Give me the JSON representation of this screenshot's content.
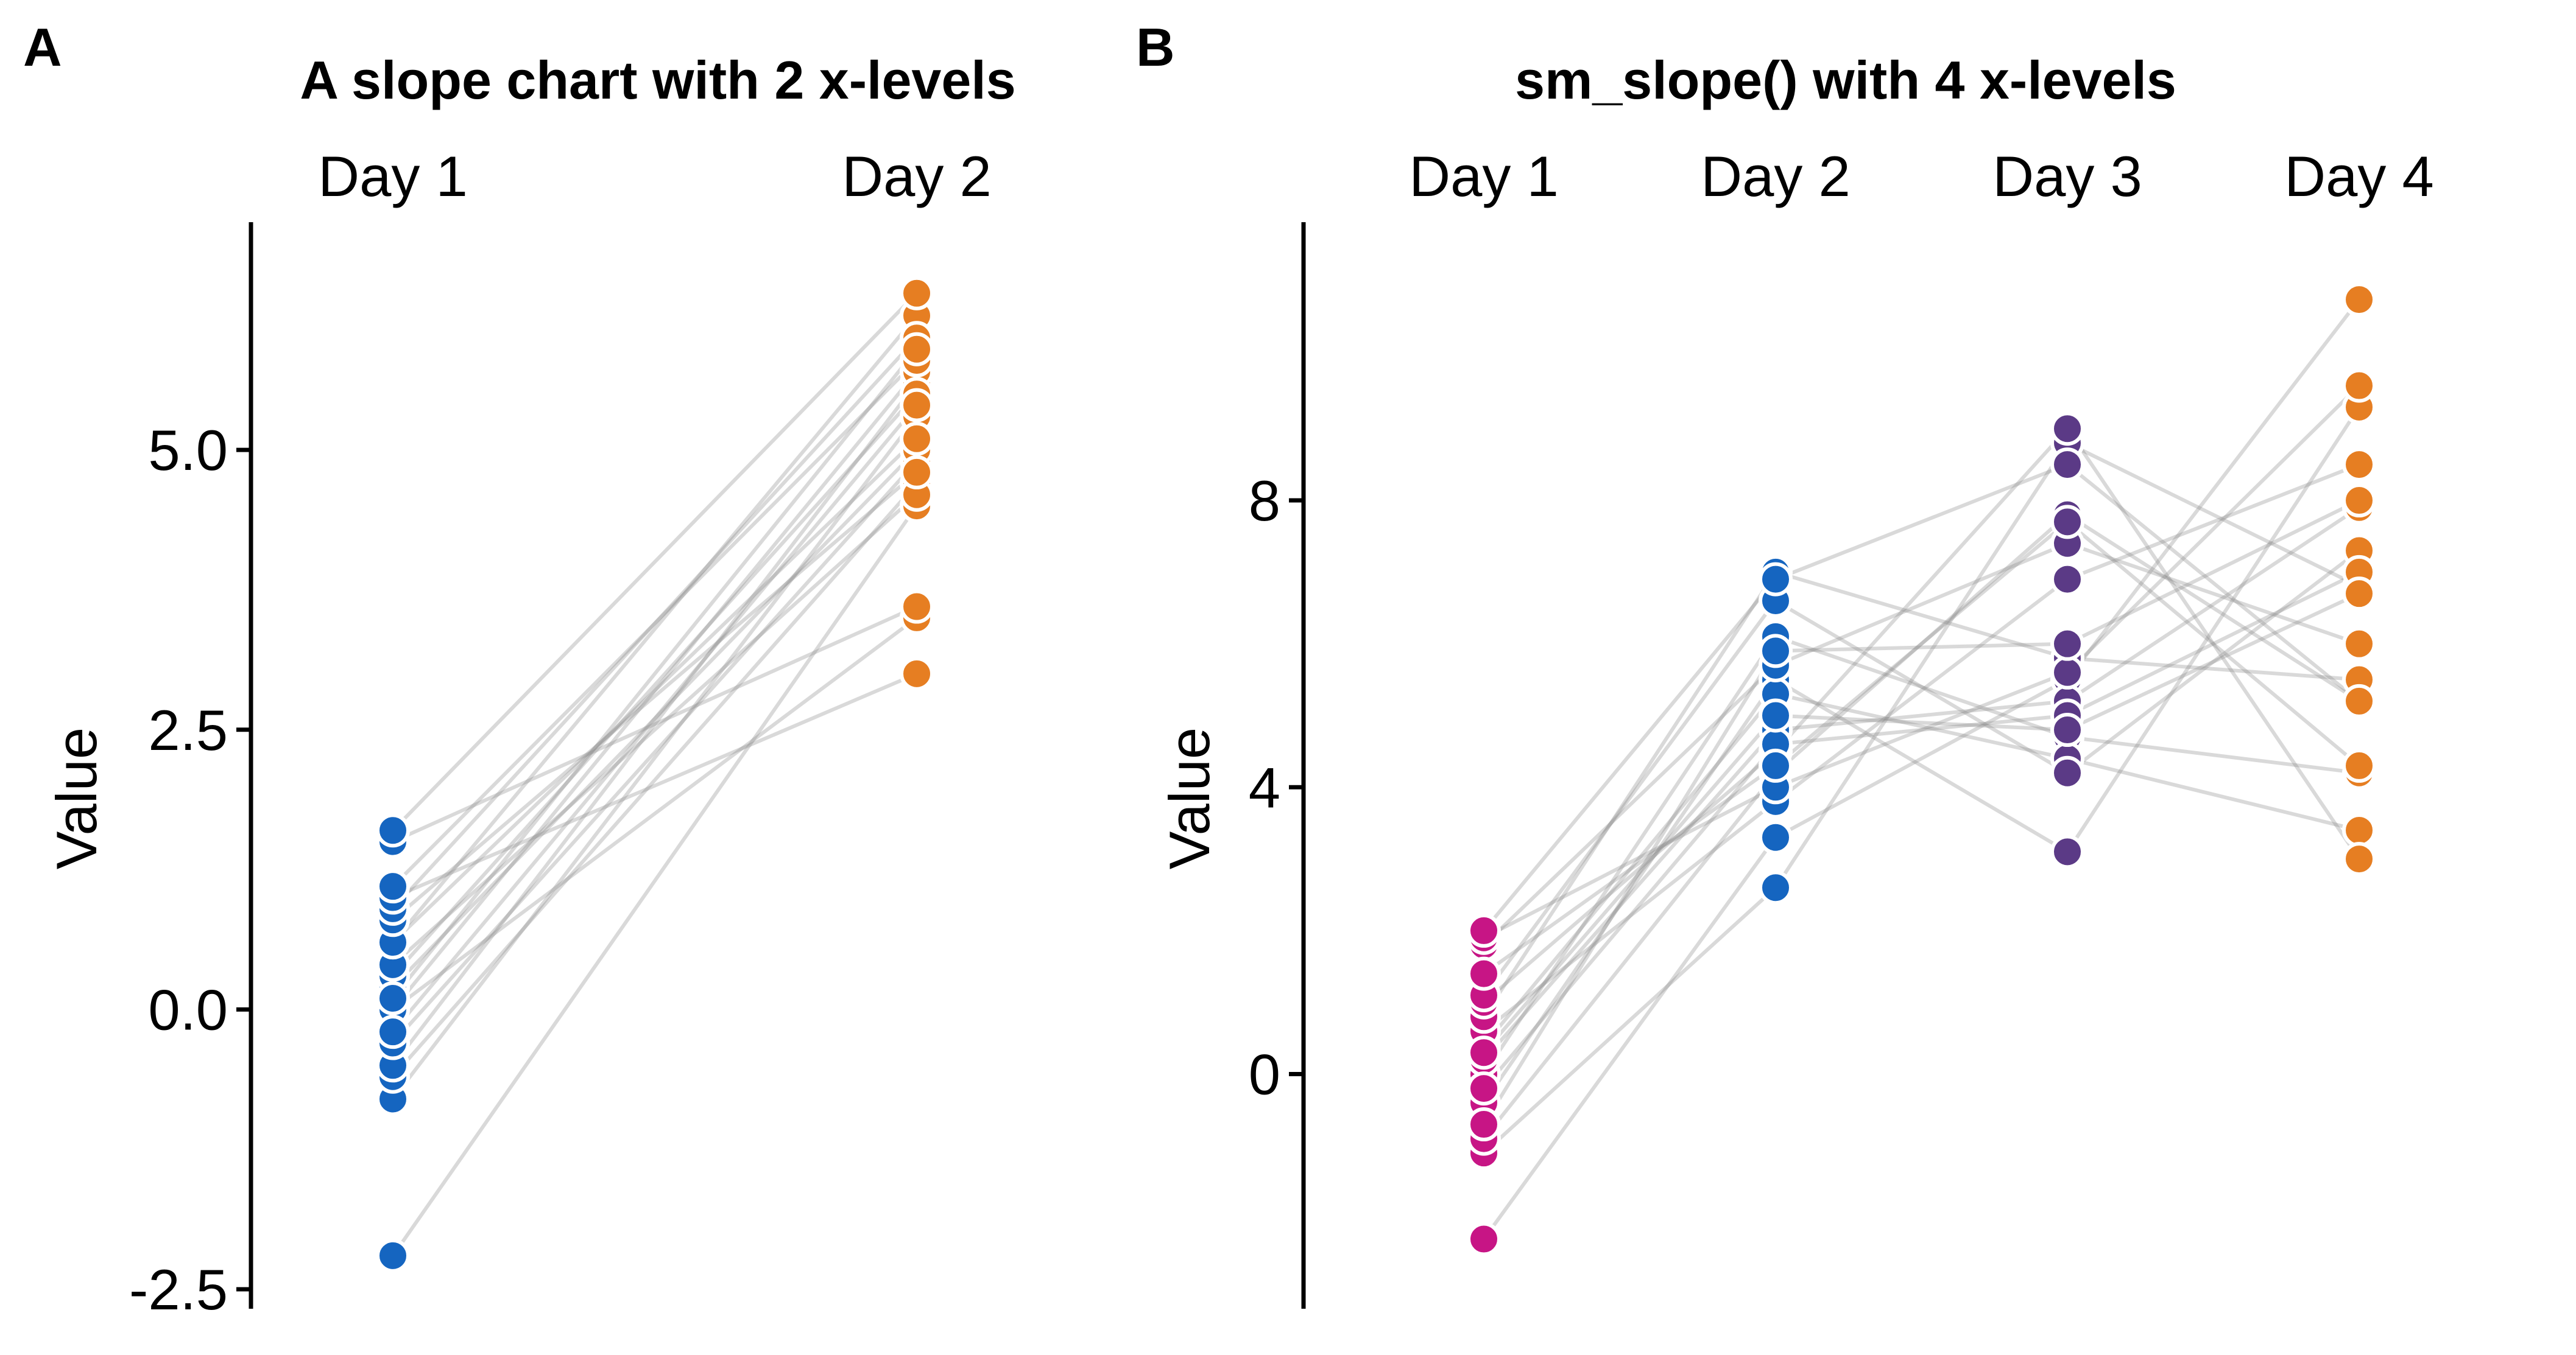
{
  "chart_data": [
    {
      "type": "line",
      "panel": "A",
      "title": "A slope chart with 2 x-levels",
      "categories": [
        "Day 1",
        "Day 2"
      ],
      "xlabel": "",
      "ylabel": "Value",
      "ylim": [
        -2.5,
        6.6
      ],
      "yticks": [
        "-2.5",
        "0.0",
        "2.5",
        "5.0"
      ],
      "colors": [
        "#1565C0",
        "#E67E22"
      ],
      "grid": false,
      "legend": "none",
      "subjects": [
        [
          -2.2,
          4.5
        ],
        [
          -0.8,
          5.3
        ],
        [
          -0.6,
          4.7
        ],
        [
          -0.5,
          5.6
        ],
        [
          -0.3,
          4.9
        ],
        [
          0.0,
          5.7
        ],
        [
          0.0,
          3.5
        ],
        [
          0.2,
          5.0
        ],
        [
          0.3,
          5.5
        ],
        [
          0.4,
          4.6
        ],
        [
          0.6,
          6.2
        ],
        [
          0.6,
          5.1
        ],
        [
          0.8,
          4.8
        ],
        [
          0.9,
          6.0
        ],
        [
          1.0,
          3.0
        ],
        [
          1.1,
          5.8
        ],
        [
          1.5,
          3.6
        ],
        [
          1.6,
          6.4
        ],
        [
          0.1,
          5.9
        ],
        [
          -0.2,
          5.4
        ]
      ]
    },
    {
      "type": "line",
      "panel": "B",
      "title": "sm_slope() with 4 x-levels",
      "categories": [
        "Day 1",
        "Day 2",
        "Day 3",
        "Day 4"
      ],
      "xlabel": "",
      "ylabel": "Value",
      "ylim": [
        -3,
        11.2
      ],
      "yticks": [
        "0",
        "4",
        "8"
      ],
      "colors": [
        "#C71585",
        "#1565C0",
        "#5B3A86",
        "#E67E22"
      ],
      "grid": false,
      "legend": "none",
      "subjects": [
        [
          -2.3,
          3.3,
          5.5,
          10.8
        ],
        [
          -1.1,
          2.6,
          8.8,
          6.8
        ],
        [
          -0.9,
          4.2,
          7.8,
          5.2
        ],
        [
          -0.4,
          5.5,
          3.1,
          9.3
        ],
        [
          0.0,
          6.1,
          4.7,
          4.2
        ],
        [
          0.2,
          4.8,
          5.2,
          7.9
        ],
        [
          0.4,
          5.3,
          4.4,
          3.4
        ],
        [
          0.6,
          3.8,
          6.9,
          8.5
        ],
        [
          0.8,
          7.0,
          5.8,
          5.5
        ],
        [
          1.0,
          4.5,
          9.0,
          3.0
        ],
        [
          1.1,
          6.6,
          4.2,
          7.3
        ],
        [
          1.8,
          5.7,
          7.4,
          6.0
        ],
        [
          1.9,
          4.0,
          5.6,
          9.6
        ],
        [
          2.0,
          6.9,
          8.5,
          5.2
        ],
        [
          -0.2,
          4.6,
          5.0,
          7.0
        ],
        [
          0.3,
          5.0,
          4.8,
          6.7
        ],
        [
          1.4,
          4.3,
          7.7,
          4.3
        ],
        [
          -0.7,
          5.9,
          6.0,
          8.0
        ]
      ]
    }
  ]
}
